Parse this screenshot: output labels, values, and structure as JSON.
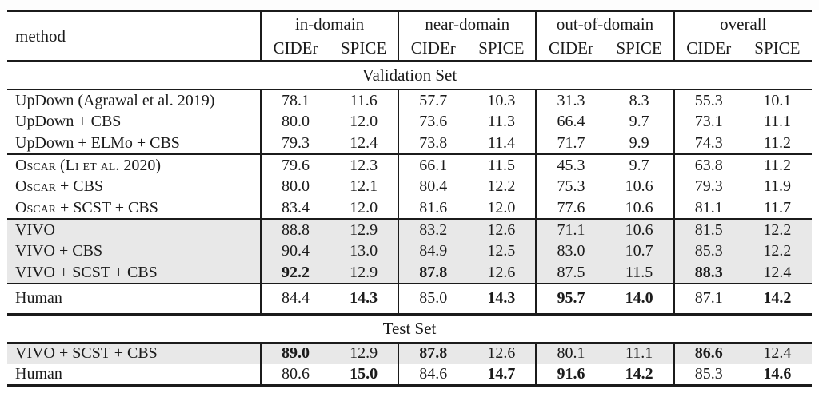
{
  "page": {
    "background": "#ffffff",
    "text_color": "#1b1b1b",
    "rule_color": "#1b1b1b",
    "highlight_row_color": "#e8e8e8"
  },
  "table": {
    "method_header": "method",
    "groups": [
      {
        "label": "in-domain",
        "sub": [
          "CIDEr",
          "SPICE"
        ]
      },
      {
        "label": "near-domain",
        "sub": [
          "CIDEr",
          "SPICE"
        ]
      },
      {
        "label": "out-of-domain",
        "sub": [
          "CIDEr",
          "SPICE"
        ]
      },
      {
        "label": "overall",
        "sub": [
          "CIDEr",
          "SPICE"
        ]
      }
    ],
    "sections": [
      {
        "title": "Validation Set",
        "row_groups": [
          {
            "rows": [
              {
                "method": "UpDown (Agrawal et al. 2019)",
                "cells": [
                  {
                    "v": "78.1"
                  },
                  {
                    "v": "11.6"
                  },
                  {
                    "v": "57.7"
                  },
                  {
                    "v": "10.3"
                  },
                  {
                    "v": "31.3"
                  },
                  {
                    "v": "8.3"
                  },
                  {
                    "v": "55.3"
                  },
                  {
                    "v": "10.1"
                  }
                ]
              },
              {
                "method": "UpDown + CBS",
                "cells": [
                  {
                    "v": "80.0"
                  },
                  {
                    "v": "12.0"
                  },
                  {
                    "v": "73.6"
                  },
                  {
                    "v": "11.3"
                  },
                  {
                    "v": "66.4"
                  },
                  {
                    "v": "9.7"
                  },
                  {
                    "v": "73.1"
                  },
                  {
                    "v": "11.1"
                  }
                ]
              },
              {
                "method": "UpDown + ELMo + CBS",
                "cells": [
                  {
                    "v": "79.3"
                  },
                  {
                    "v": "12.4"
                  },
                  {
                    "v": "73.8"
                  },
                  {
                    "v": "11.4"
                  },
                  {
                    "v": "71.7"
                  },
                  {
                    "v": "9.9"
                  },
                  {
                    "v": "74.3"
                  },
                  {
                    "v": "11.2"
                  }
                ]
              }
            ]
          },
          {
            "rows": [
              {
                "method": "Oscar (Li et al. 2020)",
                "sc": true,
                "cells": [
                  {
                    "v": "79.6"
                  },
                  {
                    "v": "12.3"
                  },
                  {
                    "v": "66.1"
                  },
                  {
                    "v": "11.5"
                  },
                  {
                    "v": "45.3"
                  },
                  {
                    "v": "9.7"
                  },
                  {
                    "v": "63.8"
                  },
                  {
                    "v": "11.2"
                  }
                ]
              },
              {
                "method": "Oscar + CBS",
                "sc": true,
                "cells": [
                  {
                    "v": "80.0"
                  },
                  {
                    "v": "12.1"
                  },
                  {
                    "v": "80.4"
                  },
                  {
                    "v": "12.2"
                  },
                  {
                    "v": "75.3"
                  },
                  {
                    "v": "10.6"
                  },
                  {
                    "v": "79.3"
                  },
                  {
                    "v": "11.9"
                  }
                ]
              },
              {
                "method": "Oscar + SCST + CBS",
                "sc": true,
                "cells": [
                  {
                    "v": "83.4"
                  },
                  {
                    "v": "12.0"
                  },
                  {
                    "v": "81.6"
                  },
                  {
                    "v": "12.0"
                  },
                  {
                    "v": "77.6"
                  },
                  {
                    "v": "10.6"
                  },
                  {
                    "v": "81.1"
                  },
                  {
                    "v": "11.7"
                  }
                ]
              }
            ]
          },
          {
            "rows": [
              {
                "method": "VIVO",
                "shaded": true,
                "cells": [
                  {
                    "v": "88.8"
                  },
                  {
                    "v": "12.9"
                  },
                  {
                    "v": "83.2"
                  },
                  {
                    "v": "12.6"
                  },
                  {
                    "v": "71.1"
                  },
                  {
                    "v": "10.6"
                  },
                  {
                    "v": "81.5"
                  },
                  {
                    "v": "12.2"
                  }
                ]
              },
              {
                "method": "VIVO + CBS",
                "shaded": true,
                "cells": [
                  {
                    "v": "90.4"
                  },
                  {
                    "v": "13.0"
                  },
                  {
                    "v": "84.9"
                  },
                  {
                    "v": "12.5"
                  },
                  {
                    "v": "83.0"
                  },
                  {
                    "v": "10.7"
                  },
                  {
                    "v": "85.3"
                  },
                  {
                    "v": "12.2"
                  }
                ]
              },
              {
                "method": "VIVO + SCST + CBS",
                "shaded": true,
                "cells": [
                  {
                    "v": "92.2",
                    "b": true
                  },
                  {
                    "v": "12.9"
                  },
                  {
                    "v": "87.8",
                    "b": true
                  },
                  {
                    "v": "12.6"
                  },
                  {
                    "v": "87.5"
                  },
                  {
                    "v": "11.5"
                  },
                  {
                    "v": "88.3",
                    "b": true
                  },
                  {
                    "v": "12.4"
                  }
                ]
              }
            ]
          },
          {
            "rows": [
              {
                "method": "Human",
                "tall": true,
                "cells": [
                  {
                    "v": "84.4"
                  },
                  {
                    "v": "14.3",
                    "b": true
                  },
                  {
                    "v": "85.0"
                  },
                  {
                    "v": "14.3",
                    "b": true
                  },
                  {
                    "v": "95.7",
                    "b": true
                  },
                  {
                    "v": "14.0",
                    "b": true
                  },
                  {
                    "v": "87.1"
                  },
                  {
                    "v": "14.2",
                    "b": true
                  }
                ]
              }
            ]
          }
        ]
      },
      {
        "title": "Test Set",
        "row_groups": [
          {
            "rows": [
              {
                "method": "VIVO + SCST + CBS",
                "shaded": true,
                "cells": [
                  {
                    "v": "89.0",
                    "b": true
                  },
                  {
                    "v": "12.9"
                  },
                  {
                    "v": "87.8",
                    "b": true
                  },
                  {
                    "v": "12.6"
                  },
                  {
                    "v": "80.1"
                  },
                  {
                    "v": "11.1"
                  },
                  {
                    "v": "86.6",
                    "b": true
                  },
                  {
                    "v": "12.4"
                  }
                ]
              },
              {
                "method": "Human",
                "cells": [
                  {
                    "v": "80.6"
                  },
                  {
                    "v": "15.0",
                    "b": true
                  },
                  {
                    "v": "84.6"
                  },
                  {
                    "v": "14.7",
                    "b": true
                  },
                  {
                    "v": "91.6",
                    "b": true
                  },
                  {
                    "v": "14.2",
                    "b": true
                  },
                  {
                    "v": "85.3"
                  },
                  {
                    "v": "14.6",
                    "b": true
                  }
                ]
              }
            ]
          }
        ]
      }
    ]
  }
}
